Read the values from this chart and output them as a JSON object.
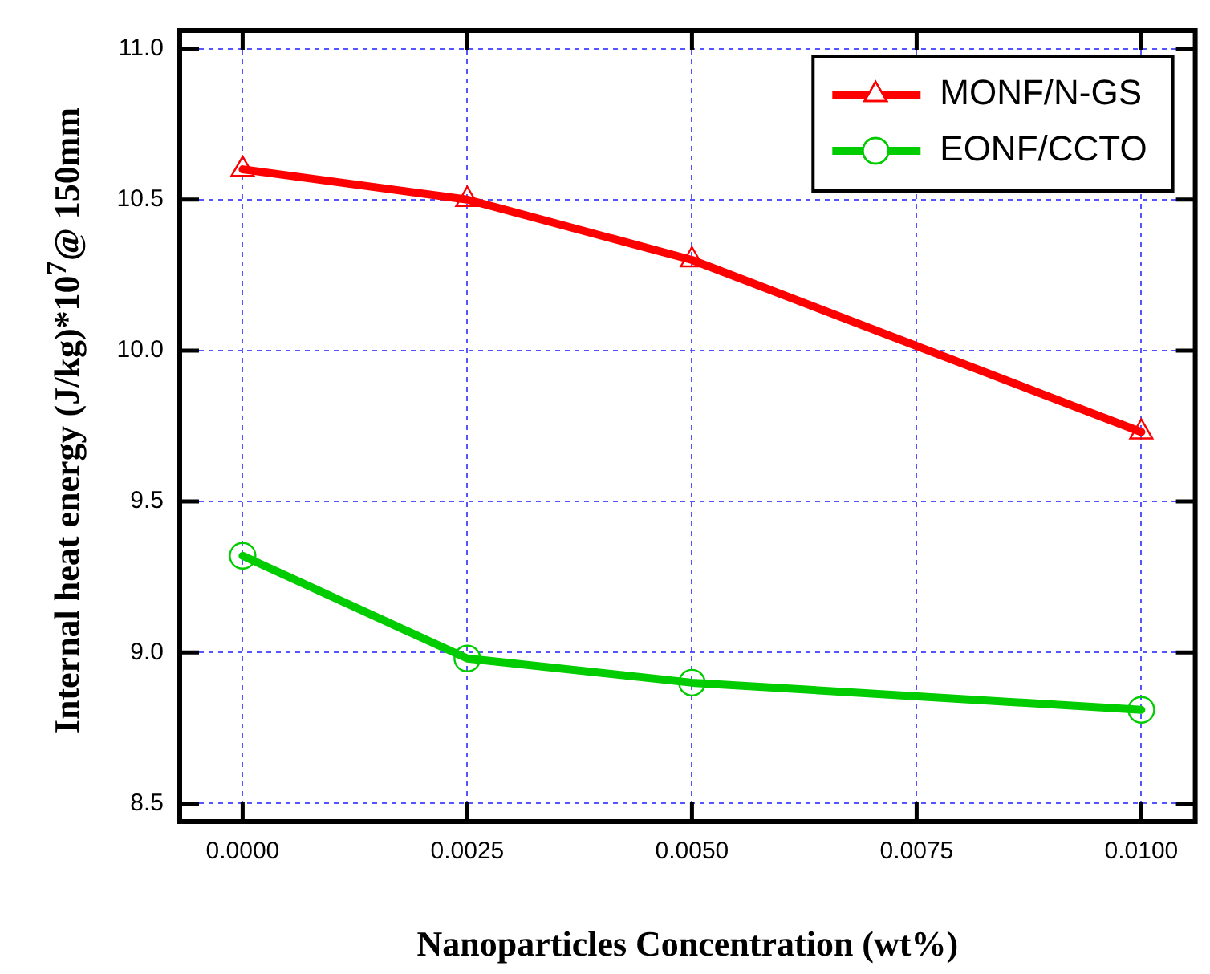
{
  "chart_data": {
    "type": "line",
    "xlabel": "Nanoparticles Concentration (wt%)",
    "ylabel": "Internal heat energy (J/kg)*10$^{7}$@ 150mm",
    "x": [
      0,
      0.0025,
      0.005,
      0.01
    ],
    "series": [
      {
        "name": "MONF/N-GS",
        "color": "#ff0000",
        "marker": "triangle",
        "values": [
          10.6,
          10.5,
          10.3,
          9.73
        ]
      },
      {
        "name": "EONF/CCTO",
        "color": "#00cc00",
        "marker": "circle",
        "values": [
          9.32,
          8.98,
          8.9,
          8.81
        ]
      }
    ],
    "xlim": [
      -0.0007,
      0.0106
    ],
    "xticks": [
      {
        "value": 0,
        "label": "0.0000"
      },
      {
        "value": 0.0025,
        "label": "0.0025"
      },
      {
        "value": 0.005,
        "label": "0.0050"
      },
      {
        "value": 0.0075,
        "label": "0.0075"
      },
      {
        "value": 0.01,
        "label": "0.0100"
      }
    ],
    "ylim": [
      8.44,
      11.06
    ],
    "yticks": [
      {
        "value": 8.5,
        "label": "8.5"
      },
      {
        "value": 9,
        "label": "9.0"
      },
      {
        "value": 9.5,
        "label": "9.5"
      },
      {
        "value": 10,
        "label": "10.0"
      },
      {
        "value": 10.5,
        "label": "10.5"
      },
      {
        "value": 11,
        "label": "11.0"
      }
    ],
    "grid": true,
    "legend": "top right",
    "line_style": "solid"
  }
}
